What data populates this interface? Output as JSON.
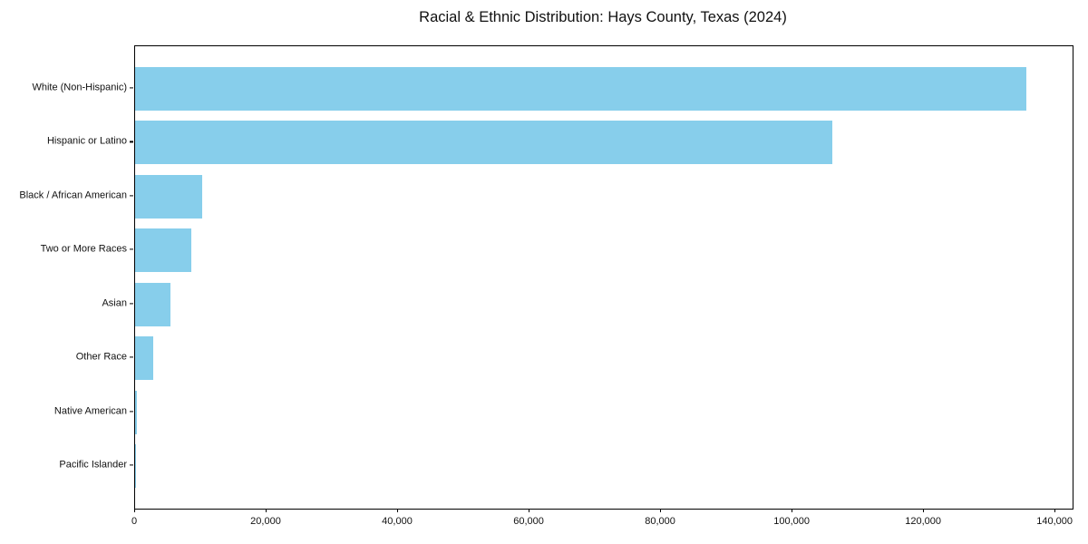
{
  "figure": {
    "title": "Racial & Ethnic Distribution: Hays County, Texas (2024)"
  },
  "chart_data": {
    "type": "bar",
    "orientation": "horizontal",
    "title": "Racial & Ethnic Distribution: Hays County, Texas (2024)",
    "categories": [
      "White (Non-Hispanic)",
      "Hispanic or Latino",
      "Black / African American",
      "Two or More Races",
      "Asian",
      "Other Race",
      "Native American",
      "Pacific Islander"
    ],
    "values": [
      135500,
      106000,
      10200,
      8500,
      5400,
      2750,
      300,
      150
    ],
    "xlabel": "",
    "ylabel": "",
    "xlim": [
      0,
      142600
    ],
    "xticks": [
      {
        "value": 0,
        "label": "0"
      },
      {
        "value": 20000,
        "label": "20,000"
      },
      {
        "value": 40000,
        "label": "40,000"
      },
      {
        "value": 60000,
        "label": "60,000"
      },
      {
        "value": 80000,
        "label": "80,000"
      },
      {
        "value": 100000,
        "label": "100,000"
      },
      {
        "value": 120000,
        "label": "120,000"
      },
      {
        "value": 140000,
        "label": "140,000"
      }
    ],
    "bar_color": "#87CEEB",
    "axis_color": "#000000",
    "text_color": "#111111",
    "background_color": "#ffffff",
    "grid": false,
    "legend": "none"
  }
}
